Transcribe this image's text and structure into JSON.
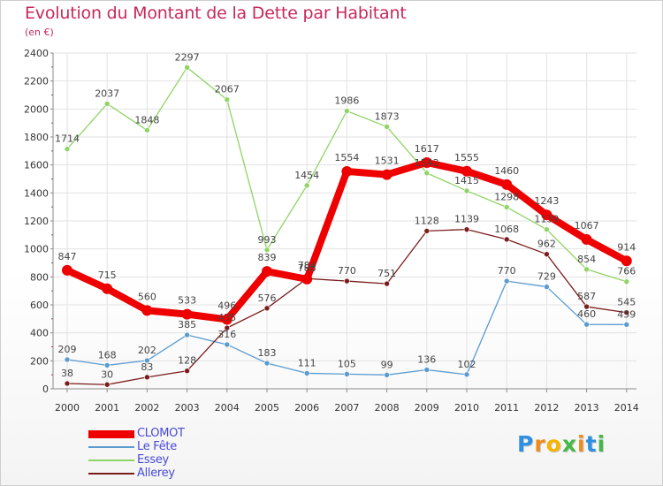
{
  "header": {
    "title": "Evolution du Montant de la Dette par Habitant",
    "subtitle": "(en €)"
  },
  "brand": {
    "letters": [
      "P",
      "r",
      "o",
      "x",
      "i",
      "t",
      "i"
    ],
    "colors": [
      "#2f8fe0",
      "#f08a1c",
      "#f5b400",
      "#46b84a",
      "#f08a1c",
      "#2f8fe0",
      "#46b84a"
    ]
  },
  "chart_data": {
    "type": "line",
    "title": "Evolution du Montant de la Dette par Habitant",
    "ylabel": "(en €)",
    "xlabel": "",
    "ylim": [
      0,
      2400
    ],
    "yticks": [
      0,
      200,
      400,
      600,
      800,
      1000,
      1200,
      1400,
      1600,
      1800,
      2000,
      2200,
      2400
    ],
    "grid": true,
    "categories": [
      "2000",
      "2001",
      "2002",
      "2003",
      "2004",
      "2005",
      "2006",
      "2007",
      "2008",
      "2009",
      "2010",
      "2011",
      "2012",
      "2013",
      "2014"
    ],
    "series": [
      {
        "name": "CLOMOT",
        "color": "#ee0000",
        "values": [
          847,
          715,
          560,
          533,
          496,
          839,
          784,
          1554,
          1531,
          1617,
          1555,
          1460,
          1243,
          1067,
          914
        ]
      },
      {
        "name": "Le Fête",
        "color": "#5a9bd0",
        "values": [
          209,
          168,
          202,
          385,
          316,
          183,
          111,
          105,
          99,
          136,
          102,
          770,
          729,
          460,
          459
        ]
      },
      {
        "name": "Essey",
        "color": "#8fd464",
        "values": [
          1714,
          2037,
          1848,
          2297,
          2067,
          993,
          1454,
          1986,
          1873,
          1542,
          1415,
          1298,
          1139,
          854,
          766
        ]
      },
      {
        "name": "Allerey",
        "color": "#7a1c1c",
        "values": [
          38,
          30,
          83,
          128,
          435,
          576,
          788,
          770,
          751,
          1128,
          1139,
          1068,
          962,
          587,
          545
        ]
      }
    ]
  }
}
